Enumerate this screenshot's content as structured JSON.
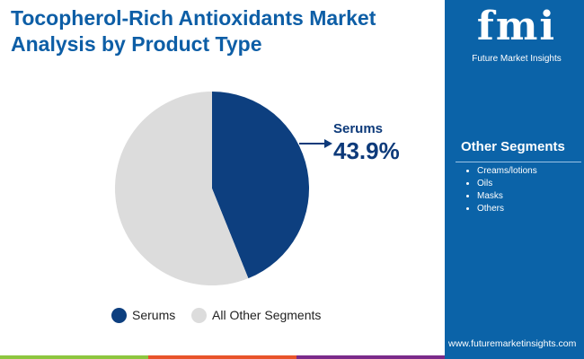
{
  "title": "Tocopherol-Rich Antioxidants Market Analysis by Product Type",
  "brand": {
    "logo_text": "fmi",
    "name": "Future Market Insights",
    "url": "www.futuremarketinsights.com"
  },
  "sidebar": {
    "heading": "Other Segments",
    "items": [
      "Creams/lotions",
      "Oils",
      "Masks",
      "Others"
    ]
  },
  "chart_data": {
    "type": "pie",
    "slices": [
      {
        "label": "Serums",
        "value": 43.9,
        "color": "#0d3f7f"
      },
      {
        "label": "All Other Segments",
        "value": 56.1,
        "color": "#dcdcdc"
      }
    ],
    "callout": {
      "label": "Serums",
      "value_text": "43.9%"
    },
    "legend": [
      "Serums",
      "All Other Segments"
    ],
    "legend_position": "bottom"
  },
  "colors": {
    "accent": "#0b63a8",
    "stripe": [
      "#8dc63f",
      "#e8542a",
      "#7b2a8a",
      "#0b63a8"
    ]
  }
}
